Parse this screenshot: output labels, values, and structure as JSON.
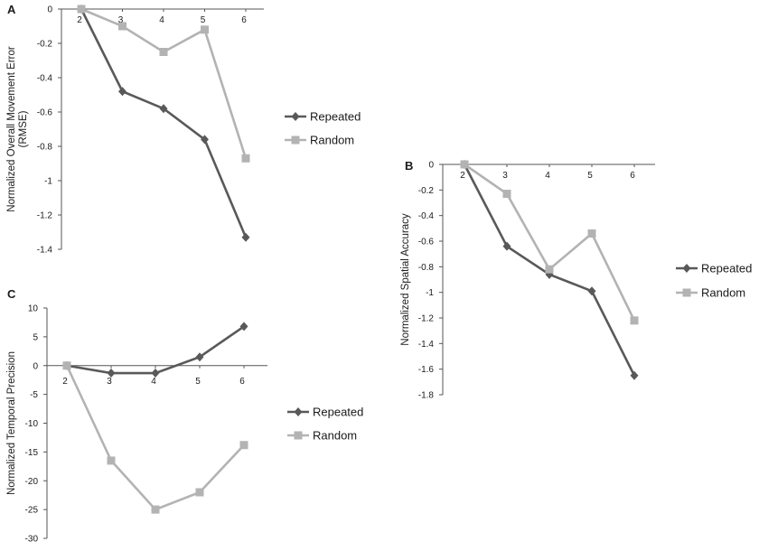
{
  "chart_data": [
    {
      "panel": "A",
      "type": "line",
      "ylabel": "Normalized Overall Movement Error (RMSE)",
      "ylim": [
        -1.4,
        0
      ],
      "yticks": [
        0,
        -0.2,
        -0.4,
        -0.6,
        -0.8,
        -1,
        -1.2,
        -1.4
      ],
      "categories": [
        "2",
        "3",
        "4",
        "5",
        "6"
      ],
      "series": [
        {
          "name": "Repeated",
          "color": "#595959",
          "marker": "diamond",
          "values": [
            0,
            -0.48,
            -0.58,
            -0.76,
            -1.33
          ]
        },
        {
          "name": "Random",
          "color": "#b3b3b3",
          "marker": "square",
          "values": [
            0,
            -0.1,
            -0.25,
            -0.12,
            -0.87
          ]
        }
      ],
      "legend": "right"
    },
    {
      "panel": "B",
      "type": "line",
      "ylabel": "Normalized Spatial Accuracy",
      "ylim": [
        -1.8,
        0
      ],
      "yticks": [
        0,
        -0.2,
        -0.4,
        -0.6,
        -0.8,
        -1,
        -1.2,
        -1.4,
        -1.6,
        -1.8
      ],
      "categories": [
        "2",
        "3",
        "4",
        "5",
        "6"
      ],
      "series": [
        {
          "name": "Repeated",
          "color": "#595959",
          "marker": "diamond",
          "values": [
            0,
            -0.64,
            -0.86,
            -0.99,
            -1.65
          ]
        },
        {
          "name": "Random",
          "color": "#b3b3b3",
          "marker": "square",
          "values": [
            0,
            -0.23,
            -0.82,
            -0.54,
            -1.22
          ]
        }
      ],
      "legend": "right"
    },
    {
      "panel": "C",
      "type": "line",
      "ylabel": "Normalized Temporal Precision",
      "ylim": [
        -30,
        10
      ],
      "yticks": [
        10,
        5,
        0,
        -5,
        -10,
        -15,
        -20,
        -25,
        -30
      ],
      "categories": [
        "2",
        "3",
        "4",
        "5",
        "6"
      ],
      "series": [
        {
          "name": "Repeated",
          "color": "#595959",
          "marker": "diamond",
          "values": [
            0,
            -1.3,
            -1.3,
            1.5,
            6.8
          ]
        },
        {
          "name": "Random",
          "color": "#b3b3b3",
          "marker": "square",
          "values": [
            0,
            -16.5,
            -25,
            -22,
            -13.8
          ]
        }
      ],
      "legend": "right"
    }
  ]
}
